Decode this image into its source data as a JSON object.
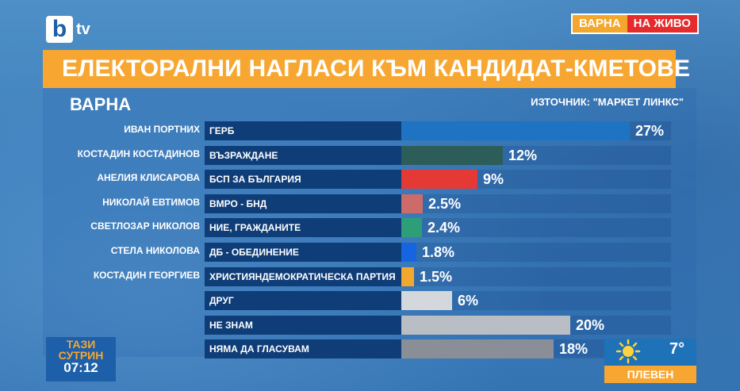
{
  "broadcaster": {
    "logo_letter": "b",
    "logo_suffix": "tv"
  },
  "live_badge": {
    "city": "ВАРНА",
    "status": "НА ЖИВО"
  },
  "chart_data": {
    "type": "bar",
    "title": "ЕЛЕКТОРАЛНИ НАГЛАСИ КЪМ КАНДИДАТ-КМЕТОВЕ",
    "subtitle": "ВАРНА",
    "source": "ИЗТОЧНИК: \"МАРКЕТ ЛИНКС\"",
    "ylim": [
      0,
      27
    ],
    "rows": [
      {
        "candidate": "ИВАН ПОРТНИХ",
        "party": "ГЕРБ",
        "value": 27,
        "label": "27%",
        "color": "#1e73c2"
      },
      {
        "candidate": "КОСТАДИН КОСТАДИНОВ",
        "party": "ВЪЗРАЖДАНЕ",
        "value": 12,
        "label": "12%",
        "color": "#2d5d58"
      },
      {
        "candidate": "АНЕЛИЯ КЛИСАРОВА",
        "party": "БСП ЗА БЪЛГАРИЯ",
        "value": 9,
        "label": "9%",
        "color": "#e53935"
      },
      {
        "candidate": "НИКОЛАЙ ЕВТИМОВ",
        "party": "ВМРО - БНД",
        "value": 2.5,
        "label": "2.5%",
        "color": "#cd6a6a"
      },
      {
        "candidate": "СВЕТЛОЗАР НИКОЛОВ",
        "party": "НИЕ, ГРАЖДАНИТЕ",
        "value": 2.4,
        "label": "2.4%",
        "color": "#2e9e78"
      },
      {
        "candidate": "СТЕЛА НИКОЛОВА",
        "party": "ДБ - ОБЕДИНЕНИЕ",
        "value": 1.8,
        "label": "1.8%",
        "color": "#1565e0"
      },
      {
        "candidate": "КОСТАДИН ГЕОРГИЕВ",
        "party": "ХРИСТИЯНДЕМОКРАТИЧЕСКА ПАРТИЯ",
        "value": 1.5,
        "label": "1.5%",
        "color": "#f2a82e"
      },
      {
        "candidate": "",
        "party": "ДРУГ",
        "value": 6,
        "label": "6%",
        "color": "#d4d7dc"
      },
      {
        "candidate": "",
        "party": "НЕ ЗНАМ",
        "value": 20,
        "label": "20%",
        "color": "#b9bdc4"
      },
      {
        "candidate": "",
        "party": "НЯМА ДА ГЛАСУВАМ",
        "value": 18,
        "label": "18%",
        "color": "#8a8f97"
      }
    ]
  },
  "show": {
    "name": "ТАЗИ СУТРИН",
    "time": "07:12"
  },
  "weather": {
    "icon": "sun-icon",
    "temperature": "7°",
    "city": "ПЛЕВЕН"
  }
}
